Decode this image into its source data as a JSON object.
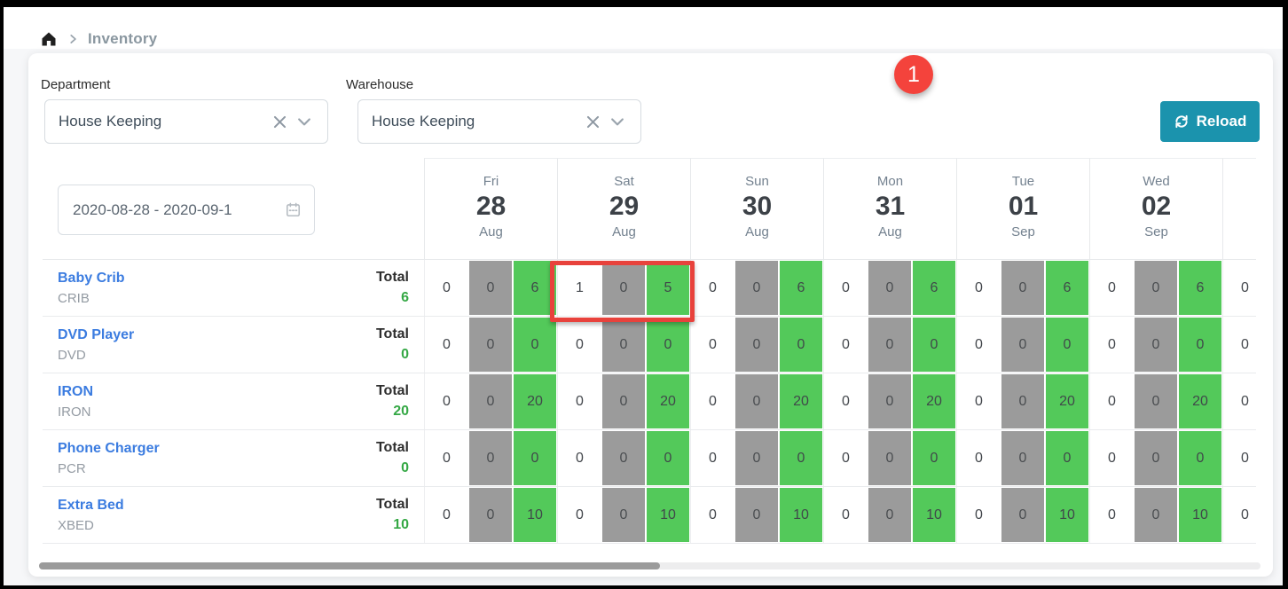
{
  "breadcrumb": {
    "page": "Inventory"
  },
  "filters": {
    "department": {
      "label": "Department",
      "value": "House Keeping"
    },
    "warehouse": {
      "label": "Warehouse",
      "value": "House Keeping"
    }
  },
  "toolbar": {
    "reload_label": "Reload"
  },
  "annotations": {
    "badge": "1"
  },
  "table": {
    "date_range": "2020-08-28 - 2020-09-1",
    "total_label": "Total",
    "days": [
      {
        "weekday": "Fri",
        "day": "28",
        "month": "Aug"
      },
      {
        "weekday": "Sat",
        "day": "29",
        "month": "Aug"
      },
      {
        "weekday": "Sun",
        "day": "30",
        "month": "Aug"
      },
      {
        "weekday": "Mon",
        "day": "31",
        "month": "Aug"
      },
      {
        "weekday": "Tue",
        "day": "01",
        "month": "Sep"
      },
      {
        "weekday": "Wed",
        "day": "02",
        "month": "Sep"
      }
    ],
    "rows": [
      {
        "name": "Baby Crib",
        "code": "CRIB",
        "total": "6",
        "cells": [
          [
            "0",
            "0",
            "6"
          ],
          [
            "1",
            "0",
            "5"
          ],
          [
            "0",
            "0",
            "6"
          ],
          [
            "0",
            "0",
            "6"
          ],
          [
            "0",
            "0",
            "6"
          ],
          [
            "0",
            "0",
            "6"
          ]
        ],
        "overflow": "0"
      },
      {
        "name": "DVD Player",
        "code": "DVD",
        "total": "0",
        "cells": [
          [
            "0",
            "0",
            "0"
          ],
          [
            "0",
            "0",
            "0"
          ],
          [
            "0",
            "0",
            "0"
          ],
          [
            "0",
            "0",
            "0"
          ],
          [
            "0",
            "0",
            "0"
          ],
          [
            "0",
            "0",
            "0"
          ]
        ],
        "overflow": "0"
      },
      {
        "name": "IRON",
        "code": "IRON",
        "total": "20",
        "cells": [
          [
            "0",
            "0",
            "20"
          ],
          [
            "0",
            "0",
            "20"
          ],
          [
            "0",
            "0",
            "20"
          ],
          [
            "0",
            "0",
            "20"
          ],
          [
            "0",
            "0",
            "20"
          ],
          [
            "0",
            "0",
            "20"
          ]
        ],
        "overflow": "0"
      },
      {
        "name": "Phone Charger",
        "code": "PCR",
        "total": "0",
        "cells": [
          [
            "0",
            "0",
            "0"
          ],
          [
            "0",
            "0",
            "0"
          ],
          [
            "0",
            "0",
            "0"
          ],
          [
            "0",
            "0",
            "0"
          ],
          [
            "0",
            "0",
            "0"
          ],
          [
            "0",
            "0",
            "0"
          ]
        ],
        "overflow": "0"
      },
      {
        "name": "Extra Bed",
        "code": "XBED",
        "total": "10",
        "cells": [
          [
            "0",
            "0",
            "10"
          ],
          [
            "0",
            "0",
            "10"
          ],
          [
            "0",
            "0",
            "10"
          ],
          [
            "0",
            "0",
            "10"
          ],
          [
            "0",
            "0",
            "10"
          ],
          [
            "0",
            "0",
            "10"
          ]
        ],
        "overflow": "0"
      }
    ]
  },
  "colors": {
    "accent_teal": "#1b93ad",
    "badge_red": "#f4433c",
    "highlight_red": "#e8423c",
    "cell_green": "#53c95a",
    "cell_gray": "#9b9b9b",
    "link_blue": "#3b7ce0",
    "total_green": "#35a845"
  }
}
